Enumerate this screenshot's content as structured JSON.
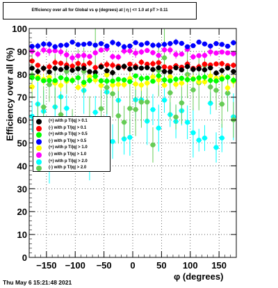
{
  "chart_data": {
    "type": "scatter",
    "title": "Efficiency over all for Global vs φ (degrees) at | η | <= 1.0 at pT > 0.11",
    "xlabel": "φ (degrees)",
    "ylabel": "Efficiency over all (%)",
    "xlim": [
      -180,
      180
    ],
    "ylim": [
      0,
      100
    ],
    "x_ticks": [
      -150,
      -100,
      -50,
      0,
      50,
      100,
      150
    ],
    "x_tick_labels": [
      "−150",
      "−100",
      "−50",
      "0",
      "50",
      "100",
      "150"
    ],
    "y_ticks": [
      0,
      10,
      20,
      30,
      40,
      50,
      60,
      70,
      80,
      90,
      100
    ],
    "grid": true,
    "legend_position": "left",
    "series": [
      {
        "name": "(+) with p T/|q| > 0.1",
        "color": "#000000",
        "level": 82,
        "spread": 1.2,
        "err": 1.0
      },
      {
        "name": "(-) with p T/|q| > 0.1",
        "color": "#ff0000",
        "level": 84,
        "spread": 1.5,
        "err": 1.2
      },
      {
        "name": "(+) with p T/|q| > 0.5",
        "color": "#00ff00",
        "level": 78,
        "spread": 1.2,
        "err": 1.2
      },
      {
        "name": "(-) with p T/|q| > 0.5",
        "color": "#0000ff",
        "level": 93,
        "spread": 1.0,
        "err": 1.0
      },
      {
        "name": "(+) with p T/|q| > 1.0",
        "color": "#ffff00",
        "level": 77,
        "spread": 2.5,
        "err": 2.0
      },
      {
        "name": "(-) with p T/|q| > 1.0",
        "color": "#ff00ff",
        "level": 89,
        "spread": 1.8,
        "err": 1.5
      },
      {
        "name": "(+) with p T/|q| > 2.0",
        "color": "#00ffff",
        "level": 58,
        "spread": 16,
        "err": 8
      },
      {
        "name": "(-) with p T/|q| > 2.0",
        "color": "#66cc55",
        "level": 72,
        "spread": 18,
        "err": 9
      }
    ]
  },
  "footer": "Thu May  6 15:21:48 2021"
}
